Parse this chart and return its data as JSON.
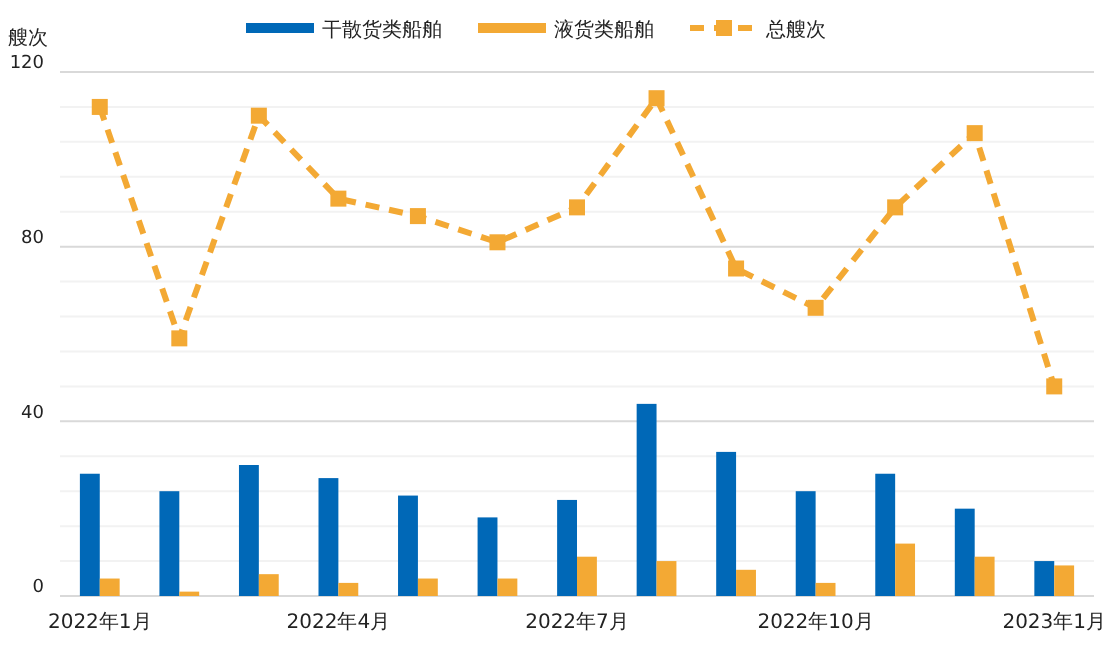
{
  "chart_data": {
    "type": "bar",
    "ylabel": "艘次",
    "categories": [
      "2022年1月",
      null,
      null,
      "2022年4月",
      null,
      null,
      "2022年7月",
      null,
      null,
      "2022年10月",
      null,
      null,
      "2023年1月"
    ],
    "series": [
      {
        "name": "干散货类船舶",
        "color": "#0068b7",
        "values": [
          28,
          24,
          30,
          27,
          23,
          18,
          22,
          44,
          33,
          24,
          28,
          20,
          8
        ]
      },
      {
        "name": "液货类船舶",
        "color": "#f3a934",
        "values": [
          4,
          1,
          5,
          3,
          4,
          4,
          9,
          8,
          6,
          3,
          12,
          9,
          7
        ]
      },
      {
        "name": "总艘次",
        "type": "line",
        "color": "#f3a934",
        "line_style": "dashed",
        "marker": "square",
        "values": [
          112,
          59,
          110,
          91,
          87,
          81,
          89,
          114,
          75,
          66,
          89,
          106,
          48
        ]
      }
    ],
    "ylim": [
      0,
      120
    ],
    "yticks": [
      0,
      {
        "value": 8,
        "label": null
      },
      {
        "value": 16,
        "label": null
      },
      {
        "value": 24,
        "label": null
      },
      {
        "value": 32,
        "label": null
      },
      40,
      {
        "value": 48,
        "label": null
      },
      {
        "value": 56,
        "label": null
      },
      {
        "value": 64,
        "label": null
      },
      {
        "value": 72,
        "label": null
      },
      80,
      {
        "value": 88,
        "label": null
      },
      {
        "value": 96,
        "label": null
      },
      {
        "value": 104,
        "label": null
      },
      {
        "value": 112,
        "label": null
      },
      120
    ],
    "grid": "y",
    "legend": "top"
  }
}
